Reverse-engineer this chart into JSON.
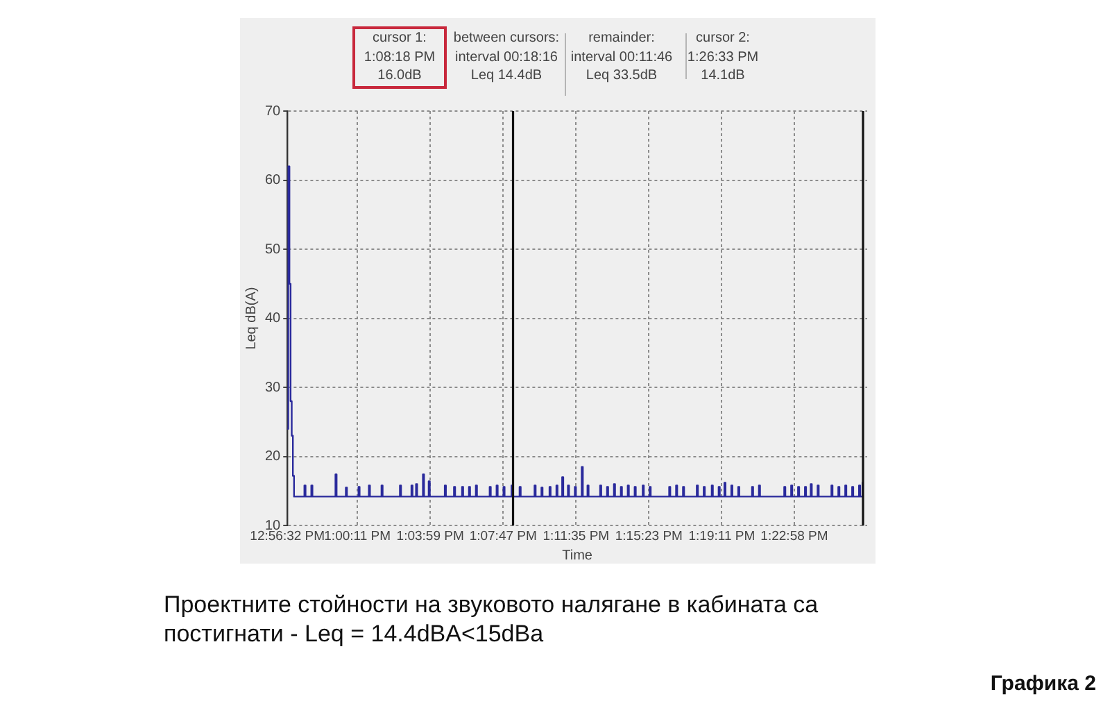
{
  "chart_data": {
    "type": "step",
    "xlabel": "Time",
    "ylabel": "Leq dB(A)",
    "annotations": [
      "cursor 1:\n1:08:18 PM\n16.0dB",
      "between cursors:\ninterval 00:18:16\nLeq 14.4dB",
      "remainder:\ninterval 00:11:46\nLeq 33.5dB",
      "cursor 2:\n1:26:33 PM\n14.1dB",
      "Проектните стойности на звуковото налягане в кабината са постигнати - Leq = 14.4dBA<15dBa",
      "Графика 2"
    ],
    "x": [
      12.9425,
      12.943,
      12.944,
      12.945,
      12.946,
      12.947,
      12.948,
      12.957,
      12.958,
      12.963,
      12.964,
      12.984,
      12.985,
      12.993,
      12.994,
      13.004,
      13.005,
      13.013,
      13.014,
      13.024,
      13.025,
      13.04,
      13.041,
      13.05,
      13.051,
      13.054,
      13.055,
      13.06,
      13.061,
      13.065,
      13.066,
      13.079,
      13.08,
      13.087,
      13.088,
      13.094,
      13.095,
      13.1,
      13.101,
      13.106,
      13.107,
      13.118,
      13.119,
      13.124,
      13.125,
      13.13,
      13.131,
      13.137,
      13.138,
      13.144,
      13.145,
      13.157,
      13.158,
      13.163,
      13.164,
      13.17,
      13.171,
      13.176,
      13.177,
      13.181,
      13.182,
      13.186,
      13.187,
      13.192,
      13.193,
      13.198,
      13.199,
      13.203,
      13.204,
      13.214,
      13.215,
      13.22,
      13.221,
      13.226,
      13.227,
      13.232,
      13.233,
      13.238,
      13.239,
      13.244,
      13.245,
      13.251,
      13.252,
      13.257,
      13.258,
      13.274,
      13.275,
      13.28,
      13.281,
      13.286,
      13.287,
      13.298,
      13.299,
      13.304,
      13.305,
      13.311,
      13.312,
      13.317,
      13.318,
      13.322,
      13.323,
      13.328,
      13.329,
      13.334,
      13.335,
      13.346,
      13.347,
      13.352,
      13.353,
      13.374,
      13.375,
      13.38,
      13.381,
      13.386,
      13.387,
      13.392,
      13.393,
      13.397,
      13.398,
      13.403,
      13.404,
      13.415,
      13.416,
      13.421,
      13.422,
      13.427,
      13.428,
      13.433,
      13.434,
      13.439,
      13.44,
      13.442
    ],
    "values": [
      24,
      62,
      45,
      28,
      23,
      17.2,
      14.2,
      15.8,
      14.2,
      15.8,
      14.2,
      17.4,
      14.2,
      15.5,
      14.2,
      15.6,
      14.2,
      15.8,
      14.2,
      15.8,
      14.2,
      15.8,
      14.2,
      15.8,
      14.2,
      16,
      14.2,
      17.4,
      14.2,
      16.4,
      14.2,
      15.8,
      14.2,
      15.6,
      14.2,
      15.6,
      14.2,
      15.6,
      14.2,
      15.8,
      14.2,
      15.6,
      14.2,
      15.8,
      14.2,
      15.6,
      14.2,
      15.8,
      14.2,
      15.6,
      14.2,
      15.8,
      14.2,
      15.5,
      14.2,
      15.6,
      14.2,
      15.8,
      14.2,
      17,
      14.2,
      15.8,
      14.2,
      15.6,
      14.2,
      18.5,
      14.2,
      15.8,
      14.2,
      15.8,
      14.2,
      15.6,
      14.2,
      16,
      14.2,
      15.6,
      14.2,
      15.8,
      14.2,
      15.6,
      14.2,
      15.8,
      14.2,
      15.6,
      14.2,
      15.6,
      14.2,
      15.8,
      14.2,
      15.6,
      14.2,
      15.8,
      14.2,
      15.6,
      14.2,
      15.8,
      14.2,
      15.6,
      14.2,
      16.2,
      14.2,
      15.8,
      14.2,
      15.6,
      14.2,
      15.6,
      14.2,
      15.8,
      14.2,
      15.6,
      14.2,
      15.8,
      14.2,
      15.6,
      14.2,
      15.6,
      14.2,
      16,
      14.2,
      15.8,
      14.2,
      15.8,
      14.2,
      15.6,
      14.2,
      15.8,
      14.2,
      15.6,
      14.2,
      15.8,
      14.2,
      16.2
    ],
    "color": "#2a2a9c",
    "xlim": [
      12.94222,
      13.44611
    ],
    "xticks": [
      {
        "value": 12.94222,
        "label": "12:56:32 PM"
      },
      {
        "value": 13.00306,
        "label": "1:00:11 PM"
      },
      {
        "value": 13.06639,
        "label": "1:03:59 PM"
      },
      {
        "value": 13.12972,
        "label": "1:07:47 PM"
      },
      {
        "value": 13.19306,
        "label": "1:11:35 PM"
      },
      {
        "value": 13.25639,
        "label": "1:15:23 PM"
      },
      {
        "value": 13.31972,
        "label": "1:19:11 PM"
      },
      {
        "value": 13.38278,
        "label": "1:22:58 PM"
      }
    ],
    "ylim": [
      10,
      70
    ],
    "yticks": [
      10,
      20,
      30,
      40,
      50,
      60,
      70
    ],
    "grid": true,
    "marker": "none",
    "line_style": "solid",
    "ref_lines": [
      {
        "axis": "x",
        "value": 13.13833,
        "color": "#111111"
      },
      {
        "axis": "x",
        "value": 13.4425,
        "color": "#111111"
      }
    ]
  }
}
